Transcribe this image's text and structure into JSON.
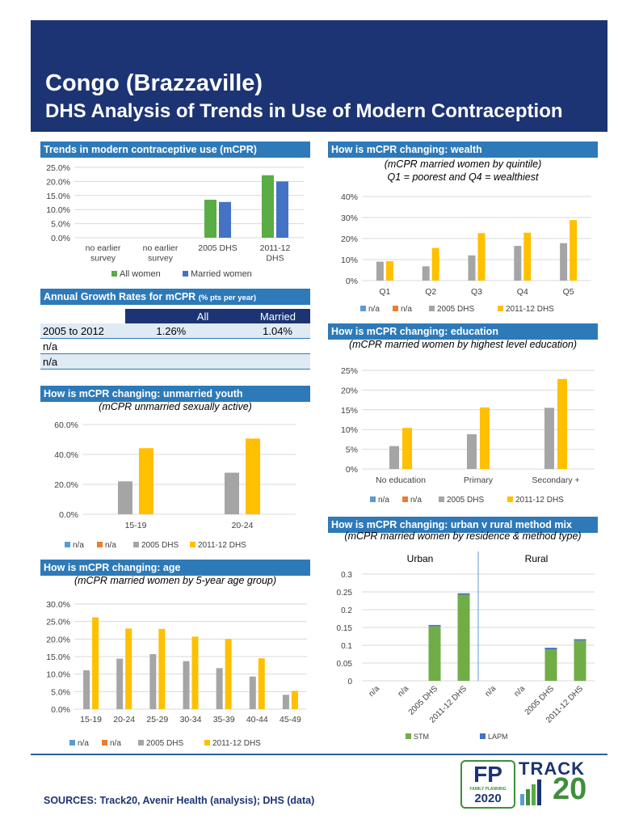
{
  "header": {
    "title": "Congo (Brazzaville)",
    "subtitle": "DHS Analysis of Trends in Use of Modern Contraception"
  },
  "colors": {
    "header_bg": "#1c3474",
    "section_bar": "#2e7ab8",
    "all_women": "#5aac44",
    "married_women": "#4472c4",
    "na_blue": "#5b9bd5",
    "na_orange": "#ed7d31",
    "dhs_2005": "#a5a5a5",
    "dhs_2011": "#ffc000",
    "stm": "#70ad47",
    "lapm": "#4472c4"
  },
  "sections": {
    "mcpr_trends": "Trends in modern contraceptive use (mCPR)",
    "growth": "Annual Growth Rates for mCPR",
    "growth_unit": "(% pts per year)",
    "youth": "How is mCPR changing: unmarried youth",
    "youth_sub": "(mCPR unmarried sexually active)",
    "age": "How is mCPR changing: age",
    "age_sub": "(mCPR married women by 5-year age group)",
    "wealth": "How is mCPR changing: wealth",
    "wealth_sub1": "(mCPR married women by quintile)",
    "wealth_sub2": "Q1 = poorest and Q4 = wealthiest",
    "education": "How is mCPR changing: education",
    "education_sub": "(mCPR married women by highest level education)",
    "mix": "How is mCPR changing: urban v rural method mix",
    "mix_sub": "(mCPR married women by residence & method type)"
  },
  "growth_table": {
    "col_all": "All",
    "col_married": "Married",
    "rows": [
      {
        "label": "2005 to 2012",
        "all": "1.26%",
        "married": "1.04%"
      },
      {
        "label": "n/a",
        "all": "",
        "married": ""
      },
      {
        "label": "n/a",
        "all": "",
        "married": ""
      }
    ]
  },
  "chart_data": [
    {
      "id": "mcpr",
      "type": "bar",
      "categories": [
        [
          "no earlier",
          "survey"
        ],
        [
          "no earlier",
          "survey"
        ],
        [
          "2005 DHS"
        ],
        [
          "2011-12",
          "DHS"
        ]
      ],
      "series": [
        {
          "name": "All women",
          "values": [
            null,
            null,
            13.5,
            22.2
          ]
        },
        {
          "name": "Married women",
          "values": [
            null,
            null,
            12.7,
            20.0
          ]
        }
      ],
      "yticks": [
        "0.0%",
        "5.0%",
        "10.0%",
        "15.0%",
        "20.0%",
        "25.0%"
      ],
      "ylim": [
        0,
        25
      ]
    },
    {
      "id": "youth",
      "type": "bar",
      "categories": [
        [
          "15-19"
        ],
        [
          "20-24"
        ]
      ],
      "series": [
        {
          "name": "n/a",
          "values": [
            null,
            null
          ]
        },
        {
          "name": "n/a",
          "values": [
            null,
            null
          ]
        },
        {
          "name": "2005 DHS",
          "values": [
            22.0,
            27.8
          ]
        },
        {
          "name": "2011-12 DHS",
          "values": [
            44.2,
            50.6
          ]
        }
      ],
      "yticks": [
        "0.0%",
        "20.0%",
        "40.0%",
        "60.0%"
      ],
      "ylim": [
        0,
        60
      ]
    },
    {
      "id": "age",
      "type": "bar",
      "categories": [
        [
          "15-19"
        ],
        [
          "20-24"
        ],
        [
          "25-29"
        ],
        [
          "30-34"
        ],
        [
          "35-39"
        ],
        [
          "40-44"
        ],
        [
          "45-49"
        ]
      ],
      "series": [
        {
          "name": "n/a",
          "values": [
            null,
            null,
            null,
            null,
            null,
            null,
            null
          ]
        },
        {
          "name": "n/a",
          "values": [
            null,
            null,
            null,
            null,
            null,
            null,
            null
          ]
        },
        {
          "name": "2005 DHS",
          "values": [
            11.1,
            14.4,
            15.7,
            13.7,
            11.7,
            9.3,
            4.1
          ]
        },
        {
          "name": "2011-12 DHS",
          "values": [
            26.2,
            23.0,
            22.9,
            20.7,
            20.0,
            14.5,
            5.2
          ]
        }
      ],
      "yticks": [
        "0.0%",
        "5.0%",
        "10.0%",
        "15.0%",
        "20.0%",
        "25.0%",
        "30.0%"
      ],
      "ylim": [
        0,
        30
      ]
    },
    {
      "id": "wealth",
      "type": "bar",
      "categories": [
        [
          "Q1"
        ],
        [
          "Q2"
        ],
        [
          "Q3"
        ],
        [
          "Q4"
        ],
        [
          "Q5"
        ]
      ],
      "series": [
        {
          "name": "n/a",
          "values": [
            null,
            null,
            null,
            null,
            null
          ]
        },
        {
          "name": "n/a",
          "values": [
            null,
            null,
            null,
            null,
            null
          ]
        },
        {
          "name": "2005 DHS",
          "values": [
            9.0,
            6.8,
            12.0,
            16.5,
            17.8
          ]
        },
        {
          "name": "2011-12 DHS",
          "values": [
            9.2,
            15.5,
            22.6,
            22.8,
            28.8
          ]
        }
      ],
      "yticks": [
        "0%",
        "10%",
        "20%",
        "30%",
        "40%"
      ],
      "ylim": [
        0,
        40
      ]
    },
    {
      "id": "education",
      "type": "bar",
      "categories": [
        [
          "No education"
        ],
        [
          "Primary"
        ],
        [
          "Secondary +"
        ]
      ],
      "series": [
        {
          "name": "n/a",
          "values": [
            null,
            null,
            null
          ]
        },
        {
          "name": "n/a",
          "values": [
            null,
            null,
            null
          ]
        },
        {
          "name": "2005 DHS",
          "values": [
            5.8,
            8.8,
            15.5
          ]
        },
        {
          "name": "2011-12 DHS",
          "values": [
            10.4,
            15.6,
            22.8
          ]
        }
      ],
      "yticks": [
        "0%",
        "5%",
        "10%",
        "15%",
        "20%",
        "25%"
      ],
      "ylim": [
        0,
        25
      ]
    },
    {
      "id": "mix",
      "type": "bar",
      "stacked": true,
      "groups": [
        "Urban",
        "Rural"
      ],
      "categories": [
        "n/a",
        "n/a",
        "2005 DHS",
        "2011-12 DHS",
        "n/a",
        "n/a",
        "2005 DHS",
        "2011-12 DHS"
      ],
      "series": [
        {
          "name": "STM",
          "values": [
            null,
            null,
            0.153,
            0.242,
            null,
            null,
            0.088,
            0.113
          ]
        },
        {
          "name": "LAPM",
          "values": [
            null,
            null,
            0.004,
            0.004,
            null,
            null,
            0.005,
            0.004
          ]
        }
      ],
      "yticks": [
        "0",
        "0.05",
        "0.1",
        "0.15",
        "0.2",
        "0.25",
        "0.3"
      ],
      "ylim": [
        0,
        0.3
      ]
    }
  ],
  "footer": {
    "sources": "SOURCES: Track20, Avenir Health (analysis); DHS (data)",
    "fp_logo_top": "FP",
    "fp_logo_small": "FAMILY PLANNING",
    "fp_logo_year": "2020",
    "track_logo_word": "TRACK",
    "track_logo_num": "20"
  }
}
